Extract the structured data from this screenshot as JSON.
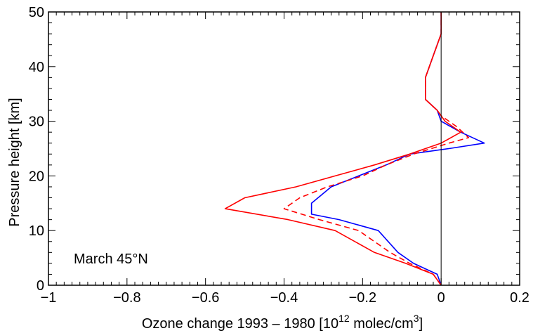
{
  "chart_data": {
    "type": "line",
    "title": "",
    "xlabel": "Ozone change 1993 – 1980 [10",
    "xlabel_sup": "12",
    "xlabel_mid": " molec/cm",
    "xlabel_sup2": "3",
    "xlabel_end": "]",
    "ylabel": "Pressure height [km]",
    "xlim": [
      -1,
      0.2
    ],
    "ylim": [
      0,
      50
    ],
    "x_ticks": [
      -1,
      -0.8,
      -0.6,
      -0.4,
      -0.2,
      0,
      0.2
    ],
    "x_tick_labels": [
      "−1",
      "−0.8",
      "−0.6",
      "−0.4",
      "−0.2",
      "0",
      "0.2"
    ],
    "y_ticks": [
      0,
      10,
      20,
      30,
      40,
      50
    ],
    "y_tick_labels": [
      "0",
      "10",
      "20",
      "30",
      "40",
      "50"
    ],
    "annotation": "March 45°N",
    "grid": false,
    "reference_line_x": 0,
    "series": [
      {
        "color": "#0000ff",
        "style": "solid",
        "points": [
          [
            0,
            0
          ],
          [
            -0.01,
            2
          ],
          [
            -0.07,
            4
          ],
          [
            -0.11,
            6
          ],
          [
            -0.16,
            10
          ],
          [
            -0.26,
            12
          ],
          [
            -0.33,
            13
          ],
          [
            -0.33,
            15
          ],
          [
            -0.28,
            18
          ],
          [
            -0.21,
            20
          ],
          [
            -0.14,
            22
          ],
          [
            -0.08,
            24
          ],
          [
            0.02,
            25
          ],
          [
            0.11,
            26
          ],
          [
            0.05,
            28
          ],
          [
            0.0,
            30
          ],
          [
            -0.01,
            32
          ],
          [
            -0.04,
            34
          ],
          [
            -0.04,
            36
          ],
          [
            -0.04,
            38
          ],
          [
            -0.03,
            40
          ],
          [
            -0.02,
            42
          ],
          [
            -0.01,
            44
          ],
          [
            0,
            46
          ],
          [
            0,
            48
          ],
          [
            0,
            50
          ]
        ]
      },
      {
        "color": "#ff0000",
        "style": "solid",
        "points": [
          [
            0,
            0
          ],
          [
            -0.02,
            2
          ],
          [
            -0.09,
            4
          ],
          [
            -0.17,
            6
          ],
          [
            -0.27,
            10
          ],
          [
            -0.39,
            12
          ],
          [
            -0.55,
            14
          ],
          [
            -0.5,
            16
          ],
          [
            -0.37,
            18
          ],
          [
            -0.27,
            20
          ],
          [
            -0.17,
            22
          ],
          [
            -0.08,
            24
          ],
          [
            0,
            26
          ],
          [
            0.05,
            28
          ],
          [
            0.01,
            30
          ],
          [
            -0.01,
            32
          ],
          [
            -0.04,
            34
          ],
          [
            -0.04,
            36
          ],
          [
            -0.04,
            38
          ],
          [
            -0.03,
            40
          ],
          [
            -0.02,
            42
          ],
          [
            -0.01,
            44
          ],
          [
            0,
            46
          ],
          [
            0,
            48
          ],
          [
            0,
            50
          ]
        ]
      },
      {
        "color": "#ff0000",
        "style": "dashed",
        "points": [
          [
            0,
            0
          ],
          [
            -0.02,
            2
          ],
          [
            -0.08,
            4
          ],
          [
            -0.13,
            6
          ],
          [
            -0.21,
            10
          ],
          [
            -0.31,
            12
          ],
          [
            -0.4,
            14
          ],
          [
            -0.36,
            16
          ],
          [
            -0.29,
            18
          ],
          [
            -0.2,
            20
          ],
          [
            -0.14,
            22
          ],
          [
            -0.07,
            24
          ],
          [
            0.02,
            26
          ],
          [
            0.07,
            27
          ],
          [
            0.04,
            29
          ],
          [
            0.0,
            31
          ],
          [
            -0.01,
            32
          ],
          [
            -0.04,
            34
          ],
          [
            -0.04,
            36
          ],
          [
            -0.04,
            38
          ],
          [
            -0.03,
            40
          ],
          [
            -0.02,
            42
          ],
          [
            -0.01,
            44
          ],
          [
            0,
            46
          ],
          [
            0,
            48
          ],
          [
            0,
            50
          ]
        ]
      }
    ]
  }
}
